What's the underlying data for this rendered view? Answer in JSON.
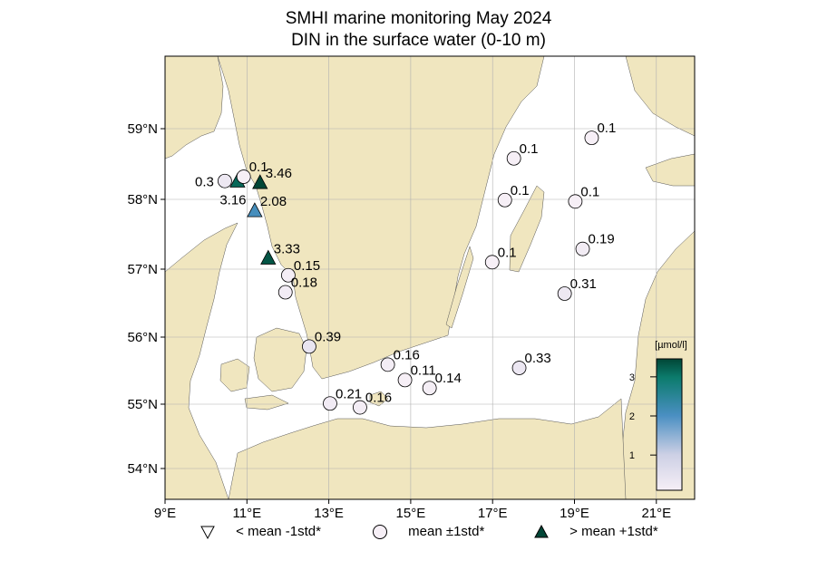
{
  "title_line1": "SMHI marine monitoring May 2024",
  "title_line2": "DIN in the surface water (0-10 m)",
  "chart_data": {
    "type": "scatter",
    "map": "Skagerrak, Kattegat, Sound and Baltic Proper",
    "x_ticks": [
      "9°E",
      "11°E",
      "13°E",
      "15°E",
      "17°E",
      "19°E",
      "21°E"
    ],
    "x_tick_values": [
      9,
      11,
      13,
      15,
      17,
      19,
      21
    ],
    "y_ticks": [
      "54°N",
      "55°N",
      "56°N",
      "57°N",
      "58°N",
      "59°N"
    ],
    "y_tick_values": [
      54,
      55,
      56,
      57,
      58,
      59
    ],
    "lon_range": [
      9,
      21.9
    ],
    "lat_range": [
      53.5,
      60.0
    ],
    "grid": true,
    "colorbar": {
      "label": "[µmol/l]",
      "ticks": [
        1,
        2,
        3
      ],
      "range": [
        0.1,
        3.46
      ],
      "colors": [
        "#f6eff6",
        "#cdd0e5",
        "#4a8fc2",
        "#0b7b6c",
        "#014636"
      ]
    },
    "points": [
      {
        "lon": 10.46,
        "lat": 58.26,
        "value": 0.3,
        "label": "0.3",
        "marker": "circle"
      },
      {
        "lon": 10.77,
        "lat": 58.25,
        "value": 3.16,
        "label": "3.16",
        "marker": "triangle-up"
      },
      {
        "lon": 10.92,
        "lat": 58.32,
        "value": 0.1,
        "label": "0.1",
        "marker": "circle"
      },
      {
        "lon": 11.32,
        "lat": 58.23,
        "value": 3.46,
        "label": "3.46",
        "marker": "triangle-up"
      },
      {
        "lon": 11.19,
        "lat": 57.83,
        "value": 2.08,
        "label": "2.08",
        "marker": "triangle-up"
      },
      {
        "lon": 11.52,
        "lat": 57.15,
        "value": 3.33,
        "label": "3.33",
        "marker": "triangle-up"
      },
      {
        "lon": 12.01,
        "lat": 56.91,
        "value": 0.15,
        "label": "0.15",
        "marker": "circle"
      },
      {
        "lon": 11.94,
        "lat": 56.66,
        "value": 0.18,
        "label": "0.18",
        "marker": "circle"
      },
      {
        "lon": 12.52,
        "lat": 55.86,
        "value": 0.39,
        "label": "0.39",
        "marker": "circle"
      },
      {
        "lon": 14.44,
        "lat": 55.59,
        "value": 0.16,
        "label": "0.16",
        "marker": "circle"
      },
      {
        "lon": 14.86,
        "lat": 55.36,
        "value": 0.11,
        "label": "0.11",
        "marker": "circle"
      },
      {
        "lon": 15.46,
        "lat": 55.24,
        "value": 0.14,
        "label": "0.14",
        "marker": "circle"
      },
      {
        "lon": 13.03,
        "lat": 55.01,
        "value": 0.21,
        "label": "0.21",
        "marker": "circle"
      },
      {
        "lon": 13.76,
        "lat": 54.95,
        "value": 0.16,
        "label": "0.16",
        "marker": "circle"
      },
      {
        "lon": 17.65,
        "lat": 55.54,
        "value": 0.33,
        "label": "0.33",
        "marker": "circle"
      },
      {
        "lon": 16.99,
        "lat": 57.1,
        "value": 0.1,
        "label": "0.1",
        "marker": "circle"
      },
      {
        "lon": 17.3,
        "lat": 57.99,
        "value": 0.1,
        "label": "0.1",
        "marker": "circle"
      },
      {
        "lon": 17.52,
        "lat": 58.58,
        "value": 0.1,
        "label": "0.1",
        "marker": "circle"
      },
      {
        "lon": 19.42,
        "lat": 58.87,
        "value": 0.1,
        "label": "0.1",
        "marker": "circle"
      },
      {
        "lon": 19.02,
        "lat": 57.97,
        "value": 0.1,
        "label": "0.1",
        "marker": "circle"
      },
      {
        "lon": 19.2,
        "lat": 57.29,
        "value": 0.19,
        "label": "0.19",
        "marker": "circle"
      },
      {
        "lon": 18.76,
        "lat": 56.64,
        "value": 0.31,
        "label": "0.31",
        "marker": "circle"
      }
    ]
  },
  "legend": [
    {
      "marker": "triangle-down",
      "label": "< mean -1std*"
    },
    {
      "marker": "circle",
      "label": "mean ±1std*"
    },
    {
      "marker": "triangle-up",
      "label": "> mean +1std*"
    }
  ],
  "colors": {
    "land": "#f0e6bf",
    "water": "#ffffff",
    "grid": "#b0b0b0"
  }
}
